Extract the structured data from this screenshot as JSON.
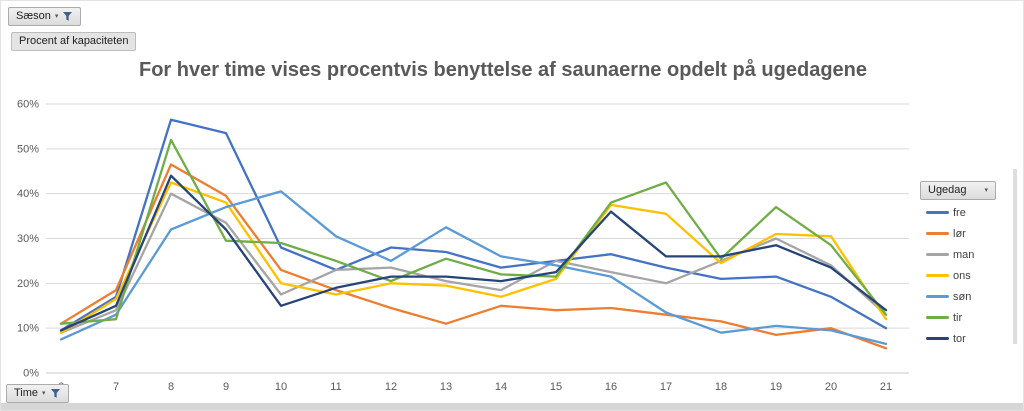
{
  "filters": {
    "season": {
      "label": "Sæson"
    },
    "value_field": {
      "label": "Procent af kapaciteten"
    },
    "time": {
      "label": "Time"
    },
    "weekday": {
      "label": "Ugedag"
    }
  },
  "icons": {
    "filter_funnel": "funnel",
    "dropdown_glyph": "▾"
  },
  "chart_data": {
    "type": "line",
    "title": "For hver time vises procentvis benyttelse af saunaerne opdelt på ugedagene",
    "xlabel": "Time",
    "ylabel": "Procent af kapaciteten",
    "x": [
      6,
      7,
      8,
      9,
      10,
      11,
      12,
      13,
      14,
      15,
      16,
      17,
      18,
      19,
      20,
      21
    ],
    "ylim": [
      0,
      60
    ],
    "yticks": [
      "0%",
      "10%",
      "20%",
      "30%",
      "40%",
      "50%",
      "60%"
    ],
    "grid": true,
    "legend_position": "right",
    "legend_title": "Ugedag",
    "series": [
      {
        "name": "fre",
        "color": "#4472C4",
        "values": [
          9.5,
          17,
          56.5,
          53.5,
          28,
          23,
          28,
          27,
          23.5,
          25,
          26.5,
          23.5,
          21,
          21.5,
          17,
          10
        ]
      },
      {
        "name": "lør",
        "color": "#ED7D31",
        "values": [
          11,
          18.5,
          46.5,
          39.5,
          23,
          18.5,
          14.5,
          11,
          15,
          14,
          14.5,
          13,
          11.5,
          8.5,
          10,
          5.5
        ]
      },
      {
        "name": "man",
        "color": "#A5A5A5",
        "values": [
          9,
          14,
          40,
          33.5,
          17.5,
          23,
          23.5,
          20.5,
          18.5,
          25,
          22.5,
          20,
          25,
          30,
          24,
          13
        ]
      },
      {
        "name": "ons",
        "color": "#FFC000",
        "values": [
          9,
          16.5,
          42.5,
          38,
          20,
          17.5,
          20,
          19.5,
          17,
          21,
          37.5,
          35.5,
          24.5,
          31,
          30.5,
          12
        ]
      },
      {
        "name": "søn",
        "color": "#5B9BD5",
        "values": [
          7.5,
          13,
          32,
          37,
          40.5,
          30.5,
          25,
          32.5,
          26,
          24,
          21.5,
          13.5,
          9,
          10.5,
          9.5,
          6.5
        ]
      },
      {
        "name": "tir",
        "color": "#70AD47",
        "values": [
          11,
          12,
          52,
          29.5,
          29,
          25,
          20.5,
          25.5,
          22,
          21.5,
          38,
          42.5,
          25.5,
          37,
          28.5,
          13
        ]
      },
      {
        "name": "tor",
        "color": "#264478",
        "values": [
          9.5,
          15,
          44,
          32,
          15,
          19,
          21.5,
          21.5,
          20.5,
          22.5,
          36,
          26,
          26,
          28.5,
          23.5,
          14
        ]
      }
    ]
  }
}
